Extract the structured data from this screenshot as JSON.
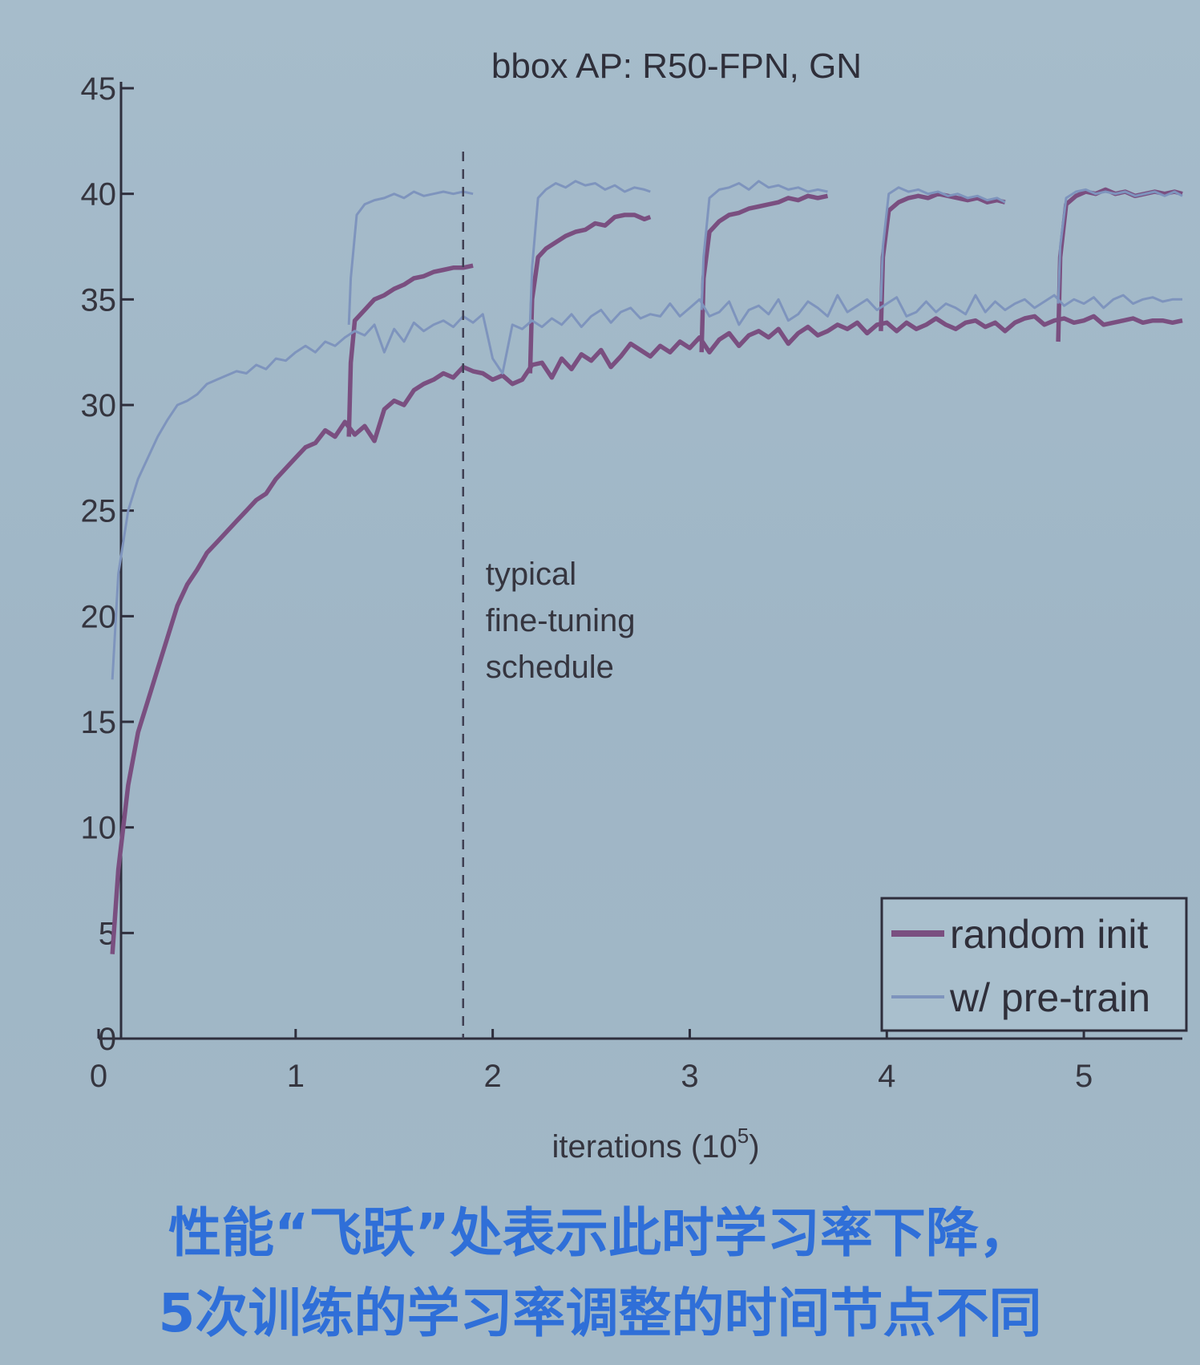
{
  "chart_data": {
    "type": "line",
    "title": "bbox AP: R50-FPN, GN",
    "xlabel": "iterations (10",
    "xlabel_sup": "5",
    "xlabel_suffix": ")",
    "xlim": [
      0,
      5.5
    ],
    "ylim": [
      0,
      45
    ],
    "xticks": [
      0,
      1,
      2,
      3,
      4,
      5
    ],
    "yticks": [
      0,
      5,
      10,
      15,
      20,
      25,
      30,
      35,
      40,
      45
    ],
    "grid": false,
    "legend_position": "bottom-right",
    "series": [
      {
        "name": "random init",
        "color": "#7a4f80",
        "runs": [
          {
            "x": [
              0.07,
              0.1,
              0.15,
              0.2,
              0.25,
              0.3,
              0.35,
              0.4,
              0.45,
              0.5,
              0.55,
              0.6,
              0.65,
              0.7,
              0.75,
              0.8,
              0.85,
              0.9,
              0.95,
              1.0,
              1.05,
              1.1,
              1.15,
              1.2,
              1.25,
              1.3,
              1.35,
              1.4,
              1.45,
              1.5,
              1.55,
              1.6,
              1.65,
              1.7,
              1.75,
              1.8,
              1.85,
              1.9,
              1.95,
              2.0,
              2.05,
              2.1,
              2.15,
              2.2,
              2.25,
              2.3,
              2.35,
              2.4,
              2.45,
              2.5,
              2.55,
              2.6,
              2.65,
              2.7,
              2.75,
              2.8,
              2.85,
              2.9,
              2.95,
              3.0,
              3.05,
              3.1,
              3.15,
              3.2,
              3.25,
              3.3,
              3.35,
              3.4,
              3.45,
              3.5,
              3.55,
              3.6,
              3.65,
              3.7,
              3.75,
              3.8,
              3.85,
              3.9,
              3.95,
              4.0,
              4.05,
              4.1,
              4.15,
              4.2,
              4.25,
              4.3,
              4.35,
              4.4,
              4.45,
              4.5,
              4.55,
              4.6,
              4.65,
              4.7,
              4.75,
              4.8,
              4.85,
              4.9,
              4.95,
              5.0,
              5.05,
              5.1,
              5.15,
              5.2,
              5.25,
              5.3,
              5.35,
              5.4,
              5.45,
              5.5
            ],
            "y": [
              4,
              8,
              12,
              14.5,
              16,
              17.5,
              19,
              20.5,
              21.5,
              22.2,
              23,
              23.5,
              24,
              24.5,
              25,
              25.5,
              25.8,
              26.5,
              27,
              27.5,
              28,
              28.2,
              28.8,
              28.5,
              29.2,
              28.6,
              29,
              28.3,
              29.8,
              30.2,
              30,
              30.7,
              31,
              31.2,
              31.5,
              31.3,
              31.8,
              31.6,
              31.5,
              31.2,
              31.4,
              31,
              31.2,
              31.9,
              32,
              31.3,
              32.2,
              31.7,
              32.4,
              32.1,
              32.6,
              31.8,
              32.3,
              32.9,
              32.6,
              32.3,
              32.8,
              32.5,
              33,
              32.7,
              33.2,
              32.5,
              33.1,
              33.4,
              32.8,
              33.3,
              33.5,
              33.2,
              33.6,
              32.9,
              33.4,
              33.7,
              33.3,
              33.5,
              33.8,
              33.6,
              33.9,
              33.4,
              33.8,
              33.9,
              33.5,
              33.9,
              33.6,
              33.8,
              34.1,
              33.8,
              33.6,
              33.9,
              34.0,
              33.7,
              33.9,
              33.5,
              33.9,
              34.1,
              34.2,
              33.8,
              34.0,
              34.1,
              33.9,
              34.0,
              34.2,
              33.8,
              33.9,
              34.0,
              34.1,
              33.9,
              34.0,
              34.0,
              33.9,
              34.0
            ]
          },
          {
            "x": [
              1.27,
              1.28,
              1.3,
              1.35,
              1.4,
              1.45,
              1.5,
              1.55,
              1.6,
              1.65,
              1.7,
              1.75,
              1.8,
              1.85,
              1.9
            ],
            "y": [
              28.5,
              32,
              34,
              34.5,
              35,
              35.2,
              35.5,
              35.7,
              36,
              36.1,
              36.3,
              36.4,
              36.5,
              36.5,
              36.6
            ]
          },
          {
            "x": [
              2.19,
              2.2,
              2.23,
              2.27,
              2.32,
              2.37,
              2.42,
              2.47,
              2.52,
              2.57,
              2.62,
              2.67,
              2.72,
              2.77,
              2.8
            ],
            "y": [
              31.5,
              35,
              37,
              37.4,
              37.7,
              38,
              38.2,
              38.3,
              38.6,
              38.5,
              38.9,
              39,
              39,
              38.8,
              38.9
            ]
          },
          {
            "x": [
              3.06,
              3.07,
              3.1,
              3.15,
              3.2,
              3.25,
              3.3,
              3.35,
              3.4,
              3.45,
              3.5,
              3.55,
              3.6,
              3.65,
              3.7
            ],
            "y": [
              32.5,
              36,
              38.2,
              38.7,
              39,
              39.1,
              39.3,
              39.4,
              39.5,
              39.6,
              39.8,
              39.7,
              39.9,
              39.8,
              39.9
            ]
          },
          {
            "x": [
              3.97,
              3.98,
              4.01,
              4.06,
              4.11,
              4.16,
              4.21,
              4.26,
              4.31,
              4.36,
              4.41,
              4.46,
              4.51,
              4.56,
              4.6
            ],
            "y": [
              33.5,
              37,
              39.2,
              39.6,
              39.8,
              39.9,
              39.8,
              40,
              39.9,
              39.8,
              39.7,
              39.8,
              39.6,
              39.7,
              39.6
            ]
          },
          {
            "x": [
              4.87,
              4.88,
              4.91,
              4.96,
              5.01,
              5.06,
              5.11,
              5.16,
              5.21,
              5.26,
              5.31,
              5.36,
              5.41,
              5.46,
              5.5
            ],
            "y": [
              33,
              37,
              39.5,
              39.9,
              40.1,
              40,
              40.2,
              40,
              40.1,
              39.9,
              40,
              40.1,
              40,
              40.1,
              40
            ]
          }
        ]
      },
      {
        "name": "w/ pre-train",
        "color": "#7e94bd",
        "runs": [
          {
            "x": [
              0.07,
              0.1,
              0.15,
              0.2,
              0.25,
              0.3,
              0.35,
              0.4,
              0.45,
              0.5,
              0.55,
              0.6,
              0.65,
              0.7,
              0.75,
              0.8,
              0.85,
              0.9,
              0.95,
              1.0,
              1.05,
              1.1,
              1.15,
              1.2,
              1.25,
              1.3,
              1.35,
              1.4,
              1.45,
              1.5,
              1.55,
              1.6,
              1.65,
              1.7,
              1.75,
              1.8,
              1.85,
              1.9,
              1.95,
              2.0,
              2.05,
              2.1,
              2.15,
              2.2,
              2.25,
              2.3,
              2.35,
              2.4,
              2.45,
              2.5,
              2.55,
              2.6,
              2.65,
              2.7,
              2.75,
              2.8,
              2.85,
              2.9,
              2.95,
              3.0,
              3.05,
              3.1,
              3.15,
              3.2,
              3.25,
              3.3,
              3.35,
              3.4,
              3.45,
              3.5,
              3.55,
              3.6,
              3.65,
              3.7,
              3.75,
              3.8,
              3.85,
              3.9,
              3.95,
              4.0,
              4.05,
              4.1,
              4.15,
              4.2,
              4.25,
              4.3,
              4.35,
              4.4,
              4.45,
              4.5,
              4.55,
              4.6,
              4.65,
              4.7,
              4.75,
              4.8,
              4.85,
              4.9,
              4.95,
              5.0,
              5.05,
              5.1,
              5.15,
              5.2,
              5.25,
              5.3,
              5.35,
              5.4,
              5.45,
              5.5
            ],
            "y": [
              17,
              22,
              25,
              26.5,
              27.5,
              28.5,
              29.3,
              30,
              30.2,
              30.5,
              31,
              31.2,
              31.4,
              31.6,
              31.5,
              31.9,
              31.7,
              32.2,
              32.1,
              32.5,
              32.8,
              32.5,
              33,
              32.8,
              33.2,
              33.5,
              33.3,
              33.8,
              32.5,
              33.6,
              33,
              33.9,
              33.5,
              33.8,
              34,
              33.7,
              34.2,
              33.9,
              34.3,
              32.2,
              31.5,
              33.8,
              33.6,
              34,
              33.7,
              34.1,
              33.8,
              34.3,
              33.7,
              34.2,
              34.5,
              33.9,
              34.4,
              34.6,
              34.1,
              34.3,
              34.2,
              34.8,
              34.2,
              34.6,
              35,
              34.2,
              34.4,
              34.9,
              33.8,
              34.5,
              34.7,
              34.3,
              35,
              34,
              34.3,
              34.9,
              34.6,
              34.2,
              35.2,
              34.4,
              34.7,
              35,
              34.5,
              34.8,
              35.1,
              34.2,
              34.4,
              34.9,
              34.4,
              34.8,
              34.6,
              34.3,
              35.2,
              34.4,
              34.9,
              34.5,
              34.8,
              35,
              34.6,
              34.9,
              35.2,
              34.7,
              35,
              34.8,
              35.1,
              34.6,
              35,
              35.2,
              34.8,
              35,
              35.1,
              34.9,
              35,
              35
            ]
          },
          {
            "x": [
              1.27,
              1.28,
              1.31,
              1.35,
              1.4,
              1.45,
              1.5,
              1.55,
              1.6,
              1.65,
              1.7,
              1.75,
              1.8,
              1.85,
              1.9
            ],
            "y": [
              33.8,
              36,
              39,
              39.5,
              39.7,
              39.8,
              40,
              39.8,
              40.1,
              39.9,
              40,
              40.1,
              40,
              40.1,
              40
            ]
          },
          {
            "x": [
              2.19,
              2.2,
              2.23,
              2.27,
              2.32,
              2.37,
              2.42,
              2.47,
              2.52,
              2.57,
              2.62,
              2.67,
              2.72,
              2.77,
              2.8
            ],
            "y": [
              33.9,
              36.5,
              39.8,
              40.2,
              40.5,
              40.3,
              40.6,
              40.4,
              40.5,
              40.2,
              40.4,
              40.1,
              40.3,
              40.2,
              40.1
            ]
          },
          {
            "x": [
              3.06,
              3.07,
              3.1,
              3.15,
              3.2,
              3.25,
              3.3,
              3.35,
              3.4,
              3.45,
              3.5,
              3.55,
              3.6,
              3.65,
              3.7
            ],
            "y": [
              34.5,
              37,
              39.8,
              40.2,
              40.3,
              40.5,
              40.2,
              40.6,
              40.3,
              40.4,
              40.2,
              40.3,
              40.1,
              40.2,
              40.1
            ]
          },
          {
            "x": [
              3.97,
              3.98,
              4.01,
              4.06,
              4.11,
              4.16,
              4.21,
              4.26,
              4.31,
              4.36,
              4.41,
              4.46,
              4.51,
              4.56,
              4.6
            ],
            "y": [
              34.9,
              37.5,
              40,
              40.3,
              40.1,
              40.2,
              40,
              40.1,
              39.9,
              40,
              39.8,
              39.9,
              39.7,
              39.8,
              39.6
            ]
          },
          {
            "x": [
              4.87,
              4.88,
              4.91,
              4.96,
              5.01,
              5.06,
              5.11,
              5.16,
              5.21,
              5.26,
              5.31,
              5.36,
              5.41,
              5.46,
              5.5
            ],
            "y": [
              34.8,
              37.5,
              39.8,
              40.1,
              40.2,
              40,
              40.1,
              40,
              40.1,
              39.9,
              40,
              40.1,
              39.9,
              40.1,
              39.9
            ]
          }
        ]
      }
    ],
    "annotations": [
      {
        "type": "vline",
        "x": 1.85,
        "style": "dashed",
        "lines": [
          "typical",
          "fine-tuning",
          "schedule"
        ]
      }
    ]
  },
  "caption": {
    "line1": "性能“飞跃”处表示此时学习率下降，",
    "line2": "5次训练的学习率调整的时间节点不同"
  }
}
